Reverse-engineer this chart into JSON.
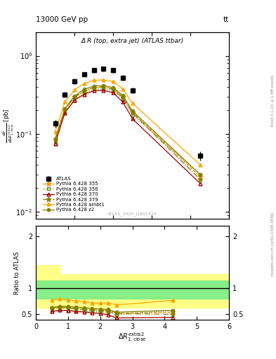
{
  "title_top": "13000 GeV pp",
  "title_top_right": "tt",
  "plot_title": "Δ R (top, extra jet) (ATLAS ttbar)",
  "ylabel_ratio": "Ratio to ATLAS",
  "watermark": "ATLAS_2020_I1801434",
  "right_label": "mcplots.cern.ch [arXiv:1306.3436]",
  "right_label2": "Rivet 3.1.10, ≥ 1.9M events",
  "x_data": [
    0.5,
    0.75,
    1.0,
    1.25,
    1.5,
    1.75,
    2.0,
    2.25,
    2.5,
    4.25
  ],
  "atlas_y": [
    0.135,
    0.32,
    0.47,
    0.58,
    0.65,
    0.68,
    0.65,
    0.52,
    0.36,
    0.052
  ],
  "atlas_yerr_lo": [
    0.015,
    0.025,
    0.035,
    0.04,
    0.05,
    0.05,
    0.05,
    0.04,
    0.03,
    0.007
  ],
  "atlas_yerr_hi": [
    0.015,
    0.025,
    0.035,
    0.04,
    0.05,
    0.05,
    0.05,
    0.04,
    0.03,
    0.007
  ],
  "p355_y": [
    0.08,
    0.2,
    0.29,
    0.35,
    0.39,
    0.4,
    0.38,
    0.3,
    0.19,
    0.028
  ],
  "p356_y": [
    0.075,
    0.185,
    0.27,
    0.33,
    0.37,
    0.375,
    0.355,
    0.28,
    0.175,
    0.03
  ],
  "p370_y": [
    0.075,
    0.185,
    0.27,
    0.32,
    0.355,
    0.36,
    0.335,
    0.255,
    0.155,
    0.023
  ],
  "p379_y": [
    0.085,
    0.205,
    0.295,
    0.355,
    0.39,
    0.395,
    0.37,
    0.29,
    0.185,
    0.026
  ],
  "pambt1_y": [
    0.105,
    0.255,
    0.365,
    0.44,
    0.485,
    0.49,
    0.465,
    0.375,
    0.245,
    0.04
  ],
  "pz2_y": [
    0.085,
    0.21,
    0.305,
    0.37,
    0.41,
    0.415,
    0.39,
    0.31,
    0.195,
    0.03
  ],
  "color_atlas": "#000000",
  "color_355": "#FF8C00",
  "color_356": "#6B8E23",
  "color_370": "#A00000",
  "color_379": "#808000",
  "color_ambt1": "#FFA500",
  "color_z2": "#808000",
  "xlim_main": [
    0,
    5
  ],
  "xlim_ratio": [
    0,
    6
  ],
  "ylim_main_lo": 0.008,
  "ylim_main_hi": 2.0,
  "ylim_ratio_lo": 0.4,
  "ylim_ratio_hi": 2.2,
  "green_band_lo": 0.8,
  "green_band_hi": 1.15,
  "yellow_band_lo": 0.62,
  "yellow_band_hi_base": 1.28,
  "yellow_band_hi_early": 1.45
}
